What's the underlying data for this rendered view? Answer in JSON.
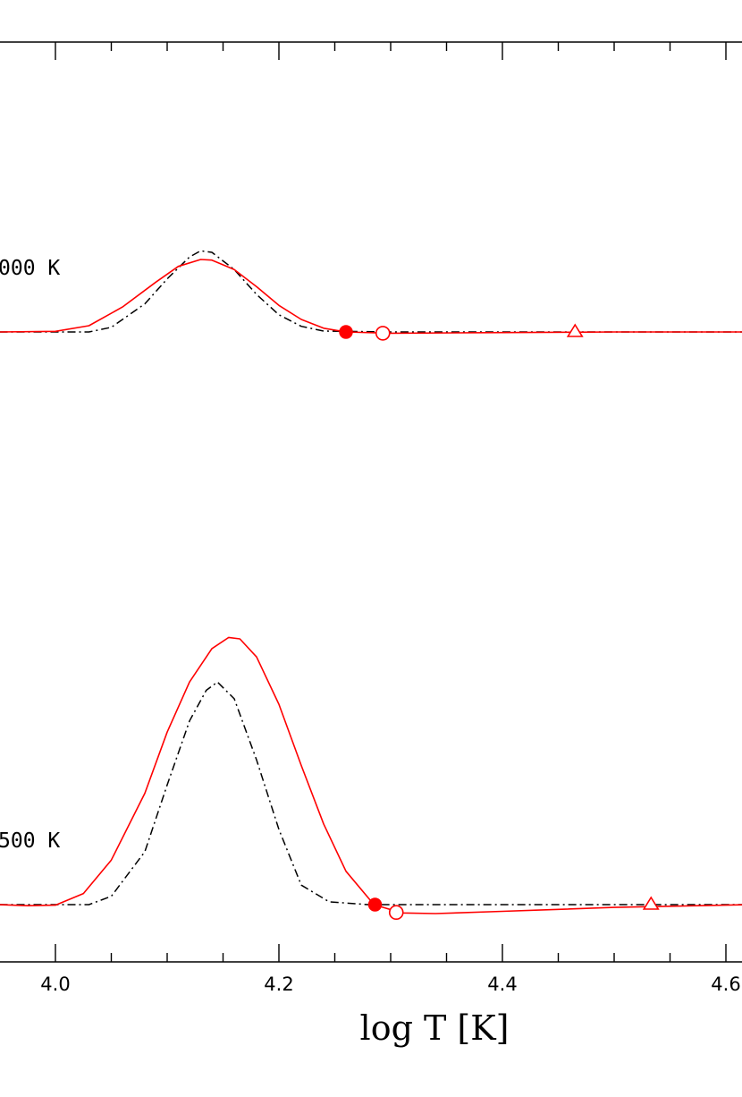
{
  "chart_data": {
    "type": "line",
    "xlabel": "log T [K]",
    "xlim": [
      3.95,
      4.62
    ],
    "x_ticks": [
      "4.0",
      "4.2",
      "4.4",
      "4.6"
    ],
    "colors": {
      "red_series": "#ff0000",
      "black_series": "#000000"
    },
    "panels": [
      {
        "annotation": "000 K",
        "series": [
          {
            "style": "red solid",
            "x": [
              3.95,
              4.0,
              4.03,
              4.06,
              4.09,
              4.11,
              4.13,
              4.14,
              4.16,
              4.18,
              4.2,
              4.22,
              4.24,
              4.26,
              4.3,
              4.4,
              4.5,
              4.62
            ],
            "y": [
              0.0,
              0.002,
              0.02,
              0.08,
              0.16,
              0.21,
              0.232,
              0.23,
              0.2,
              0.145,
              0.085,
              0.04,
              0.012,
              0.0,
              -0.004,
              -0.002,
              0.0,
              0.0
            ]
          },
          {
            "style": "black dash-dot",
            "x": [
              3.95,
              4.03,
              4.05,
              4.08,
              4.1,
              4.12,
              4.13,
              4.14,
              4.16,
              4.18,
              4.2,
              4.22,
              4.24,
              4.3,
              4.4,
              4.5,
              4.62
            ],
            "y": [
              0.0,
              0.0,
              0.015,
              0.09,
              0.17,
              0.24,
              0.26,
              0.255,
              0.2,
              0.12,
              0.055,
              0.018,
              0.003,
              0.0,
              0.0,
              0.0,
              0.0
            ]
          }
        ],
        "markers": [
          {
            "shape": "filled-circle",
            "x": 4.26,
            "y": 0.0
          },
          {
            "shape": "open-circle",
            "x": 4.293,
            "y": -0.004
          },
          {
            "shape": "open-triangle",
            "x": 4.465,
            "y": 0.0
          }
        ]
      },
      {
        "annotation": "500 K",
        "series": [
          {
            "style": "red solid",
            "x": [
              3.95,
              3.975,
              4.0,
              4.025,
              4.05,
              4.08,
              4.1,
              4.12,
              4.14,
              4.155,
              4.165,
              4.18,
              4.2,
              4.22,
              4.24,
              4.26,
              4.285,
              4.31,
              4.34,
              4.4,
              4.5,
              4.62
            ],
            "y": [
              0.0,
              -0.004,
              -0.002,
              0.04,
              0.16,
              0.4,
              0.62,
              0.8,
              0.92,
              0.96,
              0.955,
              0.89,
              0.72,
              0.5,
              0.29,
              0.12,
              0.0,
              -0.03,
              -0.032,
              -0.024,
              -0.01,
              0.0
            ]
          },
          {
            "style": "black dash-dot",
            "x": [
              3.95,
              4.03,
              4.05,
              4.08,
              4.1,
              4.12,
              4.135,
              4.145,
              4.16,
              4.18,
              4.2,
              4.22,
              4.245,
              4.28,
              4.4,
              4.5,
              4.62
            ],
            "y": [
              0.0,
              0.0,
              0.03,
              0.19,
              0.43,
              0.66,
              0.77,
              0.8,
              0.74,
              0.52,
              0.27,
              0.07,
              0.01,
              0.0,
              0.0,
              0.0,
              0.0
            ]
          }
        ],
        "markers": [
          {
            "shape": "filled-circle",
            "x": 4.286,
            "y": 0.0
          },
          {
            "shape": "open-circle",
            "x": 4.305,
            "y": -0.028
          },
          {
            "shape": "open-triangle",
            "x": 4.533,
            "y": 0.0
          }
        ]
      }
    ]
  }
}
